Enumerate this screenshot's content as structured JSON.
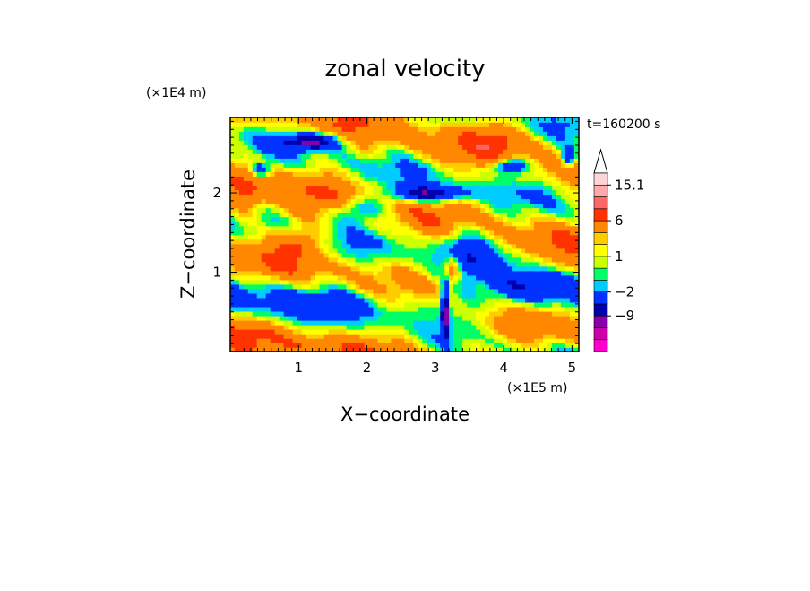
{
  "chart_data": {
    "type": "heatmap",
    "title": "zonal velocity",
    "xlabel": "X−coordinate",
    "ylabel": "Z−coordinate",
    "x_unit": "(×1E5 m)",
    "y_unit": "(×1E4 m)",
    "time_label": "t=160200 s",
    "xlim": [
      0.0,
      5.1
    ],
    "ylim": [
      0.0,
      2.95
    ],
    "x_ticks": [
      {
        "value": 1,
        "label": "1"
      },
      {
        "value": 2,
        "label": "2"
      },
      {
        "value": 3,
        "label": "3"
      },
      {
        "value": 4,
        "label": "4"
      },
      {
        "value": 5,
        "label": "5"
      }
    ],
    "y_ticks": [
      {
        "value": 1,
        "label": "1"
      },
      {
        "value": 2,
        "label": "2"
      }
    ],
    "colorbar": {
      "levels": [
        -15,
        -12,
        -9,
        -6,
        -2,
        -1,
        0,
        1,
        2,
        3,
        6,
        9,
        12,
        15.1
      ],
      "colors": [
        "#ff00cc",
        "#cc00aa",
        "#8800aa",
        "#0000aa",
        "#0033ff",
        "#00ccff",
        "#00ff66",
        "#ccff00",
        "#ffff00",
        "#ffcc00",
        "#ff8800",
        "#ff3300",
        "#ff6666",
        "#ffaaaa",
        "#ffd4d4"
      ],
      "labels": [
        {
          "value": 15.1,
          "label": "15.1"
        },
        {
          "value": 6,
          "label": "6"
        },
        {
          "value": 1,
          "label": "1"
        },
        {
          "value": -2,
          "label": "−2"
        },
        {
          "value": -9,
          "label": "−9"
        }
      ]
    }
  }
}
